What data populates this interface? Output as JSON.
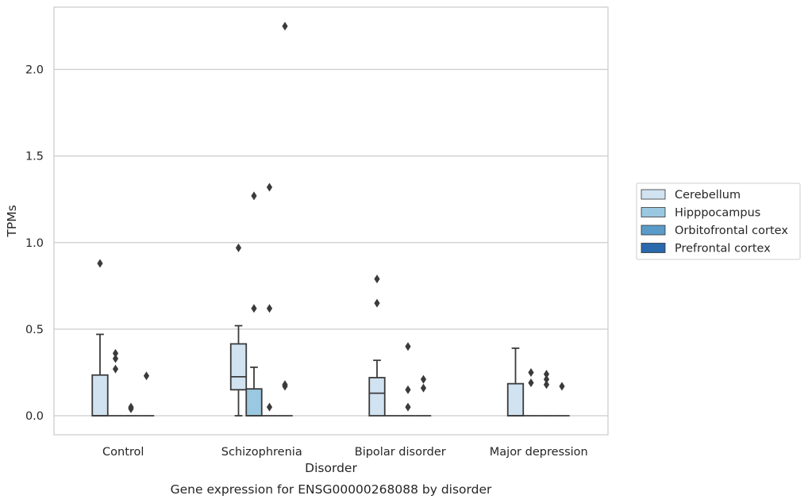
{
  "chart_data": {
    "type": "box",
    "caption": "Gene expression for ENSG00000268088 by disorder",
    "xlabel": "Disorder",
    "ylabel": "TPMs",
    "ylim": [
      -0.11,
      2.36
    ],
    "yticks": [
      0.0,
      0.5,
      1.0,
      1.5,
      2.0
    ],
    "ytick_labels": [
      "0.0",
      "0.5",
      "1.0",
      "1.5",
      "2.0"
    ],
    "categories": [
      "Control",
      "Schizophrenia",
      "Bipolar disorder",
      "Major depression"
    ],
    "grid": "horizontal",
    "legend_position": "right",
    "series": [
      {
        "name": "Cerebellum",
        "color": "#d1e2f0",
        "boxes": [
          {
            "q1": 0.0,
            "median": 0.0,
            "q3": 0.235,
            "whislo": 0.0,
            "whishi": 0.47,
            "fliers": [
              0.88
            ]
          },
          {
            "q1": 0.15,
            "median": 0.225,
            "q3": 0.415,
            "whislo": 0.0,
            "whishi": 0.52,
            "fliers": [
              0.97
            ]
          },
          {
            "q1": 0.0,
            "median": 0.13,
            "q3": 0.22,
            "whislo": 0.0,
            "whishi": 0.32,
            "fliers": [
              0.65,
              0.79
            ]
          },
          {
            "q1": 0.0,
            "median": 0.0,
            "q3": 0.185,
            "whislo": 0.0,
            "whishi": 0.39,
            "fliers": []
          }
        ]
      },
      {
        "name": "Hipppocampus",
        "color": "#9ac8e0",
        "boxes": [
          {
            "q1": 0.0,
            "median": 0.0,
            "q3": 0.0,
            "whislo": 0.0,
            "whishi": 0.0,
            "fliers": [
              0.27,
              0.33,
              0.36
            ]
          },
          {
            "q1": 0.0,
            "median": 0.0,
            "q3": 0.155,
            "whislo": 0.0,
            "whishi": 0.28,
            "fliers": [
              0.62,
              1.27
            ]
          },
          {
            "q1": 0.0,
            "median": 0.0,
            "q3": 0.0,
            "whislo": 0.0,
            "whishi": 0.0,
            "fliers": []
          },
          {
            "q1": 0.0,
            "median": 0.0,
            "q3": 0.0,
            "whislo": 0.0,
            "whishi": 0.0,
            "fliers": [
              0.19,
              0.25
            ]
          }
        ]
      },
      {
        "name": "Orbitofrontal cortex",
        "color": "#5a9bc9",
        "boxes": [
          {
            "q1": 0.0,
            "median": 0.0,
            "q3": 0.0,
            "whislo": 0.0,
            "whishi": 0.0,
            "fliers": [
              0.04,
              0.05
            ]
          },
          {
            "q1": 0.0,
            "median": 0.0,
            "q3": 0.0,
            "whislo": 0.0,
            "whishi": 0.0,
            "fliers": [
              0.05,
              0.62,
              1.32
            ]
          },
          {
            "q1": 0.0,
            "median": 0.0,
            "q3": 0.0,
            "whislo": 0.0,
            "whishi": 0.0,
            "fliers": [
              0.05,
              0.15,
              0.4
            ]
          },
          {
            "q1": 0.0,
            "median": 0.0,
            "q3": 0.0,
            "whislo": 0.0,
            "whishi": 0.0,
            "fliers": [
              0.18,
              0.21,
              0.24
            ]
          }
        ]
      },
      {
        "name": "Prefrontal cortex",
        "color": "#2969ac",
        "boxes": [
          {
            "q1": 0.0,
            "median": 0.0,
            "q3": 0.0,
            "whislo": 0.0,
            "whishi": 0.0,
            "fliers": [
              0.23
            ]
          },
          {
            "q1": 0.0,
            "median": 0.0,
            "q3": 0.0,
            "whislo": 0.0,
            "whishi": 0.0,
            "fliers": [
              0.17,
              0.18,
              2.25
            ]
          },
          {
            "q1": 0.0,
            "median": 0.0,
            "q3": 0.0,
            "whislo": 0.0,
            "whishi": 0.0,
            "fliers": [
              0.16,
              0.21
            ]
          },
          {
            "q1": 0.0,
            "median": 0.0,
            "q3": 0.0,
            "whislo": 0.0,
            "whishi": 0.0,
            "fliers": [
              0.17
            ]
          }
        ]
      }
    ],
    "style": {
      "grid_color": "#cccccc",
      "frame_color": "#cccccc",
      "box_edge_color": "#3b3b3b",
      "text_color": "#262626"
    }
  }
}
